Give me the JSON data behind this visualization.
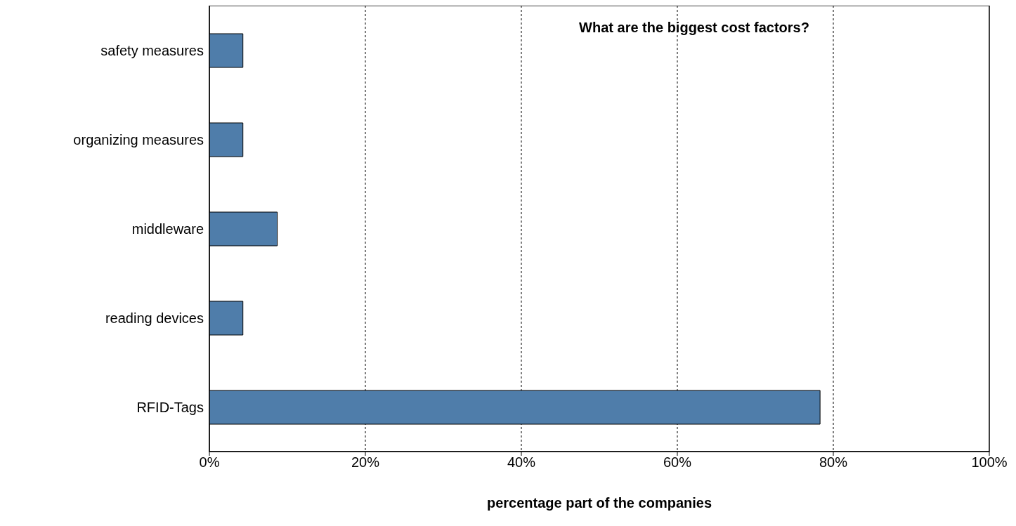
{
  "chart_data": {
    "type": "bar",
    "orientation": "horizontal",
    "title": "What are the biggest cost factors?",
    "xlabel": "percentage part of the companies",
    "categories": [
      "safety measures",
      "organizing measures",
      "middleware",
      "reading devices",
      "RFID-Tags"
    ],
    "values": [
      4.3,
      4.3,
      8.7,
      4.3,
      78.3
    ],
    "color": "#4f7daa",
    "xlim": [
      0,
      100
    ],
    "xticks": [
      {
        "value": 0,
        "label": "0%"
      },
      {
        "value": 20,
        "label": "20%"
      },
      {
        "value": 40,
        "label": "40%"
      },
      {
        "value": 60,
        "label": "60%"
      },
      {
        "value": 80,
        "label": "80%"
      },
      {
        "value": 100,
        "label": "100%"
      }
    ],
    "grid": "x",
    "legend": false
  }
}
